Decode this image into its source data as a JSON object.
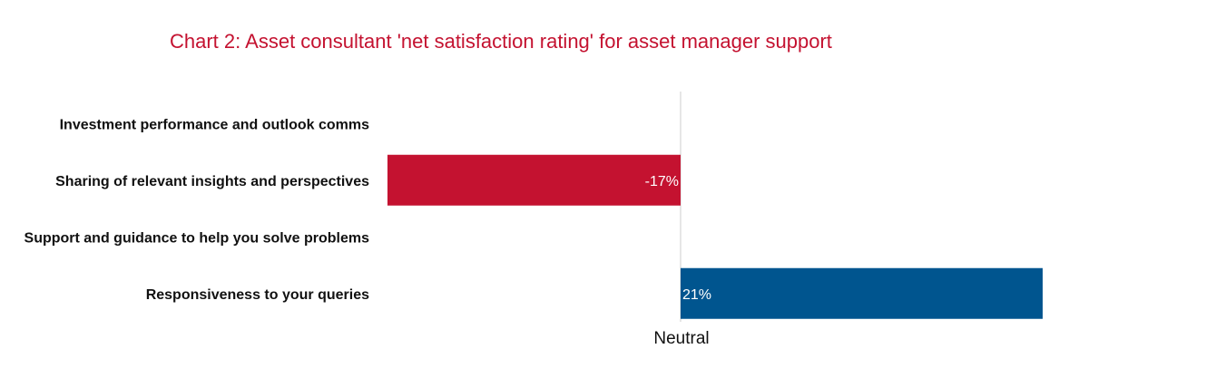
{
  "chart_data": {
    "type": "bar",
    "orientation": "horizontal",
    "title": "Chart 2: Asset consultant 'net satisfaction rating' for asset manager support",
    "categories": [
      "Investment performance and outlook comms",
      "Sharing of relevant insights and perspectives",
      "Support and guidance to help you solve problems",
      "Responsiveness to your queries"
    ],
    "values": [
      null,
      -17,
      null,
      21
    ],
    "value_labels": [
      "",
      "-17%",
      "",
      "21%"
    ],
    "xlabel": "Neutral",
    "xlim": [
      -17,
      21
    ],
    "grid": false,
    "colors": {
      "negative": "#c41230",
      "positive": "#00558f",
      "title": "#c41230",
      "axis": "#cccccc"
    }
  }
}
